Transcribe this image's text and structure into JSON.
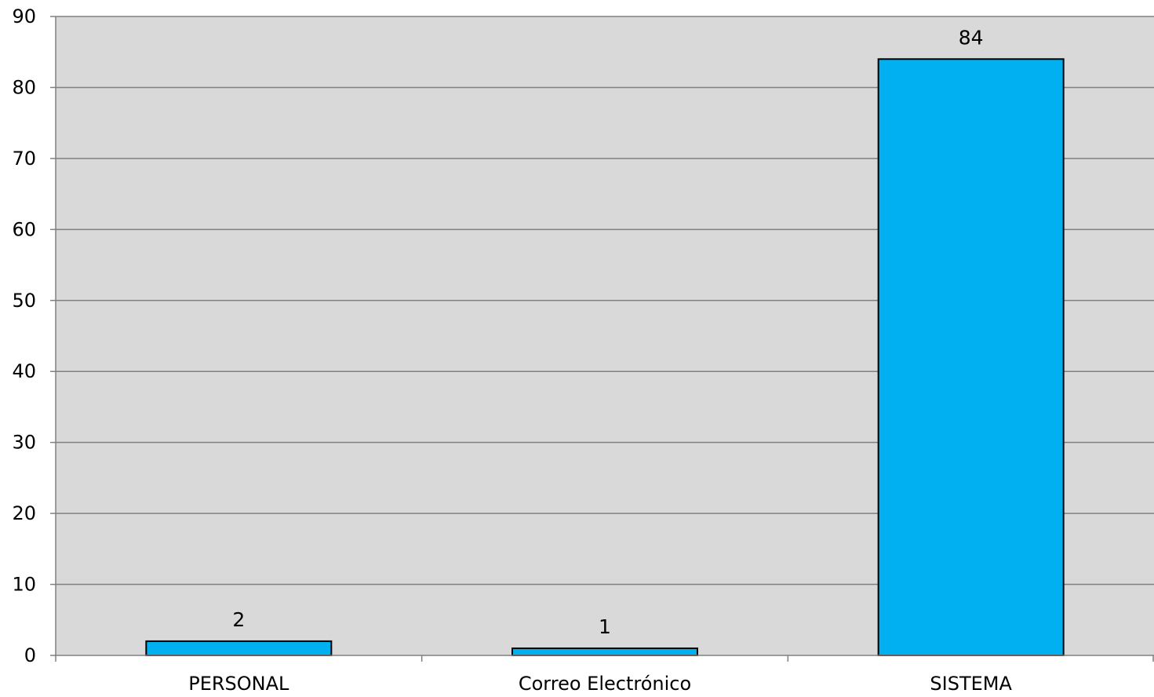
{
  "chart_data": {
    "type": "bar",
    "categories": [
      "PERSONAL",
      "Correo Electrónico",
      "SISTEMA"
    ],
    "values": [
      2,
      1,
      84
    ],
    "data_labels": [
      "2",
      "1",
      "84"
    ],
    "title": "",
    "xlabel": "",
    "ylabel": "",
    "ylim": [
      0,
      90
    ],
    "yticks": [
      0,
      10,
      20,
      30,
      40,
      50,
      60,
      70,
      80,
      90
    ],
    "grid": true,
    "legend": "none",
    "colors": {
      "bar_fill": "#00b0f0",
      "bar_stroke": "#000000",
      "plot_background": "#d9d9d9",
      "gridline": "#808080",
      "axis": "#808080"
    }
  }
}
